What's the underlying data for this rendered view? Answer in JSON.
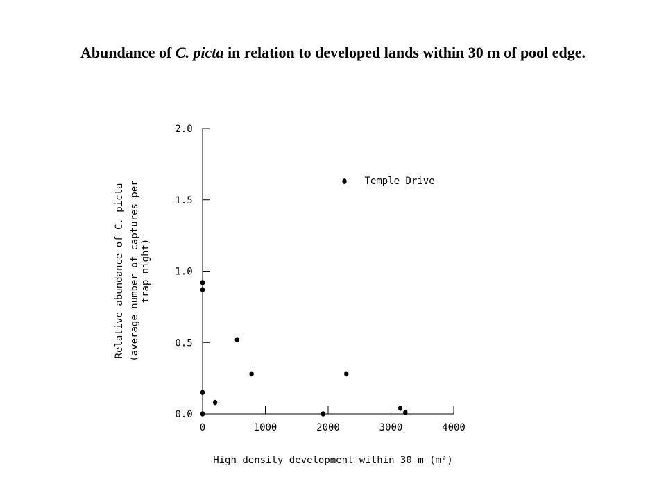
{
  "slide": {
    "title_part1": "Abundance of ",
    "title_italic": "C. picta",
    "title_part2": " in relation to developed lands within 30 m of pool edge."
  },
  "chart_data": {
    "type": "scatter",
    "xlabel": "High density development within 30 m (m²)",
    "ylabel_line1": "Relative abundance of C. picta",
    "ylabel_line2": "(average number of captures per",
    "ylabel_line3": "trap night)",
    "xlim": [
      0,
      4000
    ],
    "ylim": [
      0,
      2.0
    ],
    "x_ticks": [
      0,
      1000,
      2000,
      3000,
      4000
    ],
    "x_tick_labels": [
      "0",
      "1000",
      "2000",
      "3000",
      "4000"
    ],
    "y_ticks": [
      0,
      0.5,
      1.0,
      1.5,
      2.0
    ],
    "y_tick_labels": [
      "0.0",
      "0.5",
      "1.0",
      "1.5",
      "2.0"
    ],
    "grid": false,
    "points": [
      {
        "x": 0,
        "y": 0.92
      },
      {
        "x": 0,
        "y": 0.87
      },
      {
        "x": 0,
        "y": 0.15
      },
      {
        "x": 0,
        "y": 0.0
      },
      {
        "x": 200,
        "y": 0.08
      },
      {
        "x": 550,
        "y": 0.52
      },
      {
        "x": 780,
        "y": 0.28
      },
      {
        "x": 1920,
        "y": 0.0
      },
      {
        "x": 2260,
        "y": 1.63
      },
      {
        "x": 2290,
        "y": 0.28
      },
      {
        "x": 3150,
        "y": 0.04
      },
      {
        "x": 3230,
        "y": 0.01
      }
    ],
    "annotations": [
      {
        "text": "Temple Drive",
        "x": 2260,
        "y": 1.63
      }
    ]
  }
}
